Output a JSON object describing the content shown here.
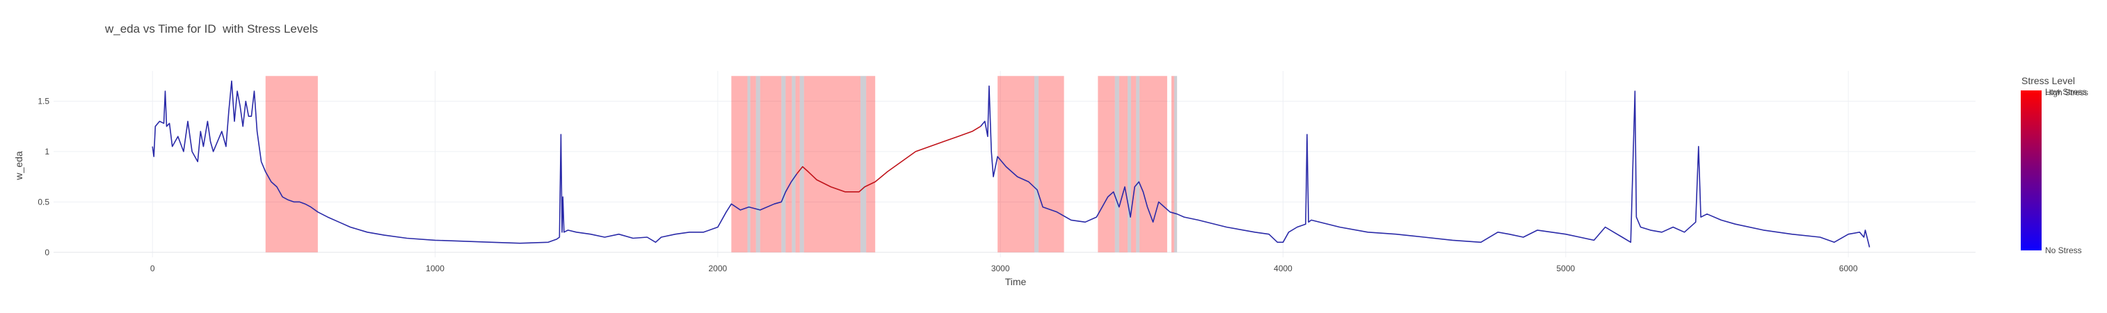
{
  "chart_data": {
    "type": "line",
    "title": "w_eda vs Time for ID  with Stress Levels",
    "xlabel": "Time",
    "ylabel": "w_eda",
    "xlim": [
      -350,
      6450
    ],
    "ylim": [
      -0.05,
      1.8
    ],
    "x_ticks": [
      0,
      1000,
      2000,
      3000,
      4000,
      5000,
      6000
    ],
    "y_ticks": [
      0,
      0.5,
      1,
      1.5
    ],
    "y_tick_labels": [
      "0",
      "0.5",
      "1",
      "1.5"
    ],
    "grid": true,
    "colorbar": {
      "title": "Stress Level",
      "low_label": "No Stress",
      "high_labels": [
        "Low Stress",
        "High Stress"
      ],
      "colors": [
        "#0d00ff",
        "#ff0000"
      ]
    },
    "stress_regions": [
      {
        "x0": 400,
        "x1": 585,
        "level": "high"
      },
      {
        "x0": 2048,
        "x1": 2105,
        "level": "high"
      },
      {
        "x0": 2115,
        "x1": 2135,
        "level": "high"
      },
      {
        "x0": 2150,
        "x1": 2225,
        "level": "high"
      },
      {
        "x0": 2240,
        "x1": 2262,
        "level": "high"
      },
      {
        "x0": 2275,
        "x1": 2290,
        "level": "high"
      },
      {
        "x0": 2305,
        "x1": 2505,
        "level": "high"
      },
      {
        "x0": 2525,
        "x1": 2557,
        "level": "high"
      },
      {
        "x0": 2990,
        "x1": 3120,
        "level": "high"
      },
      {
        "x0": 3135,
        "x1": 3225,
        "level": "high"
      },
      {
        "x0": 3345,
        "x1": 3405,
        "level": "high"
      },
      {
        "x0": 3420,
        "x1": 3450,
        "level": "high"
      },
      {
        "x0": 3462,
        "x1": 3480,
        "level": "high"
      },
      {
        "x0": 3492,
        "x1": 3590,
        "level": "high"
      },
      {
        "x0": 3605,
        "x1": 3615,
        "level": "high"
      }
    ],
    "gray_regions": [
      {
        "x0": 2105,
        "x1": 2115
      },
      {
        "x0": 2135,
        "x1": 2150
      },
      {
        "x0": 2225,
        "x1": 2240
      },
      {
        "x0": 2262,
        "x1": 2275
      },
      {
        "x0": 2290,
        "x1": 2305
      },
      {
        "x0": 2505,
        "x1": 2525
      },
      {
        "x0": 3120,
        "x1": 3135
      },
      {
        "x0": 3405,
        "x1": 3420
      },
      {
        "x0": 3450,
        "x1": 3462
      },
      {
        "x0": 3480,
        "x1": 3492
      },
      {
        "x0": 3615,
        "x1": 3625
      }
    ],
    "series": [
      {
        "color": "#2a2aa8",
        "points": [
          [
            0,
            1.05
          ],
          [
            5,
            0.95
          ],
          [
            10,
            1.25
          ],
          [
            25,
            1.3
          ],
          [
            40,
            1.28
          ],
          [
            45,
            1.6
          ],
          [
            50,
            1.25
          ],
          [
            60,
            1.28
          ],
          [
            70,
            1.05
          ],
          [
            90,
            1.15
          ],
          [
            110,
            1.0
          ],
          [
            125,
            1.3
          ],
          [
            140,
            1.0
          ],
          [
            160,
            0.9
          ],
          [
            170,
            1.2
          ],
          [
            180,
            1.05
          ],
          [
            195,
            1.3
          ],
          [
            205,
            1.1
          ],
          [
            215,
            1.0
          ],
          [
            230,
            1.1
          ],
          [
            245,
            1.2
          ],
          [
            260,
            1.05
          ],
          [
            270,
            1.4
          ],
          [
            280,
            1.7
          ],
          [
            290,
            1.3
          ],
          [
            300,
            1.6
          ],
          [
            310,
            1.45
          ],
          [
            320,
            1.25
          ],
          [
            330,
            1.5
          ],
          [
            340,
            1.35
          ],
          [
            350,
            1.35
          ],
          [
            360,
            1.6
          ],
          [
            370,
            1.2
          ],
          [
            385,
            0.9
          ],
          [
            400,
            0.8
          ],
          [
            420,
            0.7
          ],
          [
            440,
            0.65
          ],
          [
            460,
            0.55
          ],
          [
            480,
            0.52
          ],
          [
            500,
            0.5
          ],
          [
            520,
            0.5
          ],
          [
            540,
            0.48
          ],
          [
            560,
            0.45
          ],
          [
            585,
            0.4
          ],
          [
            620,
            0.35
          ],
          [
            660,
            0.3
          ],
          [
            700,
            0.25
          ],
          [
            760,
            0.2
          ],
          [
            820,
            0.17
          ],
          [
            900,
            0.14
          ],
          [
            1000,
            0.12
          ],
          [
            1100,
            0.11
          ],
          [
            1200,
            0.1
          ],
          [
            1300,
            0.09
          ],
          [
            1400,
            0.1
          ],
          [
            1430,
            0.13
          ],
          [
            1440,
            0.15
          ],
          [
            1445,
            1.17
          ],
          [
            1449,
            0.2
          ],
          [
            1452,
            0.55
          ],
          [
            1456,
            0.2
          ],
          [
            1470,
            0.22
          ],
          [
            1500,
            0.2
          ],
          [
            1550,
            0.18
          ],
          [
            1600,
            0.15
          ],
          [
            1650,
            0.18
          ],
          [
            1700,
            0.14
          ],
          [
            1750,
            0.15
          ],
          [
            1780,
            0.1
          ],
          [
            1800,
            0.15
          ],
          [
            1850,
            0.18
          ],
          [
            1900,
            0.2
          ],
          [
            1950,
            0.2
          ],
          [
            2000,
            0.25
          ],
          [
            2030,
            0.4
          ],
          [
            2048,
            0.48
          ],
          [
            2080,
            0.42
          ],
          [
            2110,
            0.45
          ],
          [
            2150,
            0.42
          ],
          [
            2200,
            0.48
          ],
          [
            2225,
            0.5
          ],
          [
            2240,
            0.6
          ],
          [
            2260,
            0.7
          ],
          [
            2280,
            0.78
          ]
        ]
      },
      {
        "color": "#c0131a",
        "points": [
          [
            2280,
            0.78
          ],
          [
            2300,
            0.85
          ],
          [
            2320,
            0.8
          ],
          [
            2350,
            0.72
          ],
          [
            2400,
            0.65
          ],
          [
            2450,
            0.6
          ],
          [
            2500,
            0.6
          ],
          [
            2520,
            0.65
          ],
          [
            2557,
            0.7
          ],
          [
            2600,
            0.8
          ],
          [
            2650,
            0.9
          ],
          [
            2700,
            1.0
          ],
          [
            2750,
            1.05
          ],
          [
            2800,
            1.1
          ],
          [
            2850,
            1.15
          ],
          [
            2900,
            1.2
          ],
          [
            2930,
            1.25
          ]
        ]
      },
      {
        "color": "#2a2aa8",
        "points": [
          [
            2930,
            1.25
          ],
          [
            2945,
            1.3
          ],
          [
            2955,
            1.15
          ],
          [
            2960,
            1.65
          ],
          [
            2968,
            1.0
          ],
          [
            2975,
            0.75
          ],
          [
            2990,
            0.95
          ],
          [
            3020,
            0.85
          ],
          [
            3060,
            0.75
          ],
          [
            3100,
            0.7
          ],
          [
            3130,
            0.62
          ],
          [
            3150,
            0.45
          ],
          [
            3200,
            0.4
          ],
          [
            3250,
            0.32
          ],
          [
            3300,
            0.3
          ],
          [
            3340,
            0.35
          ],
          [
            3360,
            0.45
          ],
          [
            3380,
            0.55
          ],
          [
            3400,
            0.6
          ],
          [
            3420,
            0.45
          ],
          [
            3440,
            0.65
          ],
          [
            3460,
            0.35
          ],
          [
            3475,
            0.65
          ],
          [
            3490,
            0.7
          ],
          [
            3505,
            0.6
          ],
          [
            3520,
            0.45
          ],
          [
            3540,
            0.3
          ],
          [
            3560,
            0.5
          ],
          [
            3580,
            0.45
          ],
          [
            3600,
            0.4
          ],
          [
            3625,
            0.38
          ],
          [
            3650,
            0.35
          ],
          [
            3700,
            0.32
          ],
          [
            3800,
            0.25
          ],
          [
            3900,
            0.2
          ],
          [
            3950,
            0.18
          ],
          [
            3980,
            0.1
          ],
          [
            4000,
            0.1
          ],
          [
            4020,
            0.2
          ],
          [
            4050,
            0.25
          ],
          [
            4080,
            0.28
          ],
          [
            4085,
            1.17
          ],
          [
            4090,
            0.3
          ],
          [
            4100,
            0.32
          ],
          [
            4200,
            0.25
          ],
          [
            4300,
            0.2
          ],
          [
            4400,
            0.18
          ],
          [
            4500,
            0.15
          ],
          [
            4600,
            0.12
          ],
          [
            4700,
            0.1
          ],
          [
            4760,
            0.2
          ],
          [
            4800,
            0.18
          ],
          [
            4850,
            0.15
          ],
          [
            4900,
            0.22
          ],
          [
            4950,
            0.2
          ],
          [
            5000,
            0.18
          ],
          [
            5050,
            0.15
          ],
          [
            5100,
            0.12
          ],
          [
            5140,
            0.25
          ],
          [
            5170,
            0.2
          ],
          [
            5200,
            0.15
          ],
          [
            5230,
            0.1
          ],
          [
            5245,
            1.6
          ],
          [
            5250,
            0.35
          ],
          [
            5265,
            0.25
          ],
          [
            5300,
            0.22
          ],
          [
            5340,
            0.2
          ],
          [
            5380,
            0.25
          ],
          [
            5420,
            0.2
          ],
          [
            5460,
            0.3
          ],
          [
            5470,
            1.05
          ],
          [
            5478,
            0.35
          ],
          [
            5500,
            0.38
          ],
          [
            5550,
            0.32
          ],
          [
            5600,
            0.28
          ],
          [
            5700,
            0.22
          ],
          [
            5800,
            0.18
          ],
          [
            5900,
            0.15
          ],
          [
            5950,
            0.1
          ],
          [
            6000,
            0.18
          ],
          [
            6040,
            0.2
          ],
          [
            6055,
            0.15
          ],
          [
            6060,
            0.22
          ],
          [
            6075,
            0.05
          ]
        ]
      }
    ]
  }
}
